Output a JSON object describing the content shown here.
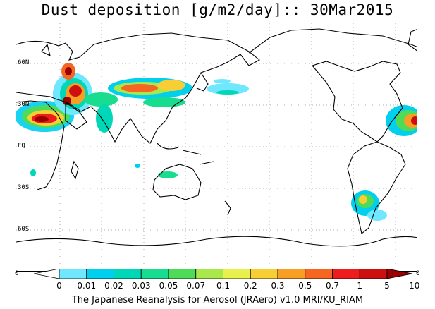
{
  "title": "Dust deposition [g/m2/day]:: 30Mar2015",
  "credit": "The Japanese Reanalysis for Aerosol (JRAero) v1.0 MRI/KU_RIAM",
  "lat_labels": [
    "60N",
    "30N",
    "EQ",
    "30S",
    "60S"
  ],
  "edge_labels": {
    "left": "0",
    "right": "0"
  },
  "colorbar": {
    "labels": [
      "0",
      "0.01",
      "0.02",
      "0.03",
      "0.05",
      "0.07",
      "0.1",
      "0.2",
      "0.3",
      "0.5",
      "0.7",
      "1",
      "5",
      "10"
    ],
    "colors": [
      "#ffffff",
      "#6ee7ff",
      "#00cfee",
      "#00d7b6",
      "#18dd8e",
      "#4edb58",
      "#a9e84a",
      "#e7f04d",
      "#f7cf35",
      "#f79f25",
      "#f56623",
      "#ee1d1d",
      "#cc0f0f",
      "#9b0000"
    ]
  }
}
